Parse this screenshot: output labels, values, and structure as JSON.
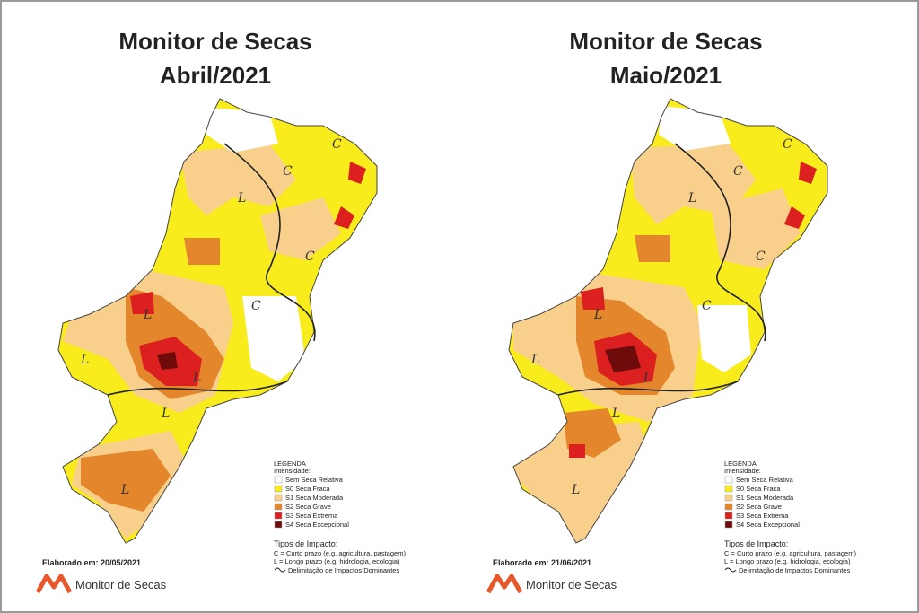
{
  "panels": [
    {
      "title": [
        "Monitor de Secas",
        "Abril/2021"
      ],
      "elaborado": "Elaborado em: 20/05/2021",
      "logo_text": "Monitor de Secas",
      "map_labels": [
        "C",
        "C",
        "L",
        "C",
        "C",
        "L",
        "L",
        "L",
        "L",
        "L"
      ]
    },
    {
      "title": [
        "Monitor de Secas",
        "Maio/2021"
      ],
      "elaborado": "Elaborado em: 21/06/2021",
      "logo_text": "Monitor de Secas",
      "map_labels": [
        "C",
        "C",
        "L",
        "C",
        "C",
        "L",
        "L",
        "L",
        "L",
        "L"
      ]
    }
  ],
  "legend": {
    "title": "LEGENDA",
    "subtitle": "Intensidade:",
    "items": [
      {
        "label": "Sem Seca Relativa",
        "color": "#ffffff"
      },
      {
        "label": "S0 Seca Fraca",
        "color": "#f8ec1c"
      },
      {
        "label": "S1 Seca Moderada",
        "color": "#f9cf8c"
      },
      {
        "label": "S2 Seca Grave",
        "color": "#e4862c"
      },
      {
        "label": "S3 Seca Extrema",
        "color": "#dc2020"
      },
      {
        "label": "S4 Seca Excepcional",
        "color": "#6e0c0c"
      }
    ],
    "impact_title": "Tipos de Impacto:",
    "impacts": [
      "C = Curto prazo (e.g. agricultura, pastagem)",
      "L = Longo prazo (e.g. hidrologia, ecologia)"
    ],
    "boundary": "Delimitação de Impactos Dominantes"
  }
}
